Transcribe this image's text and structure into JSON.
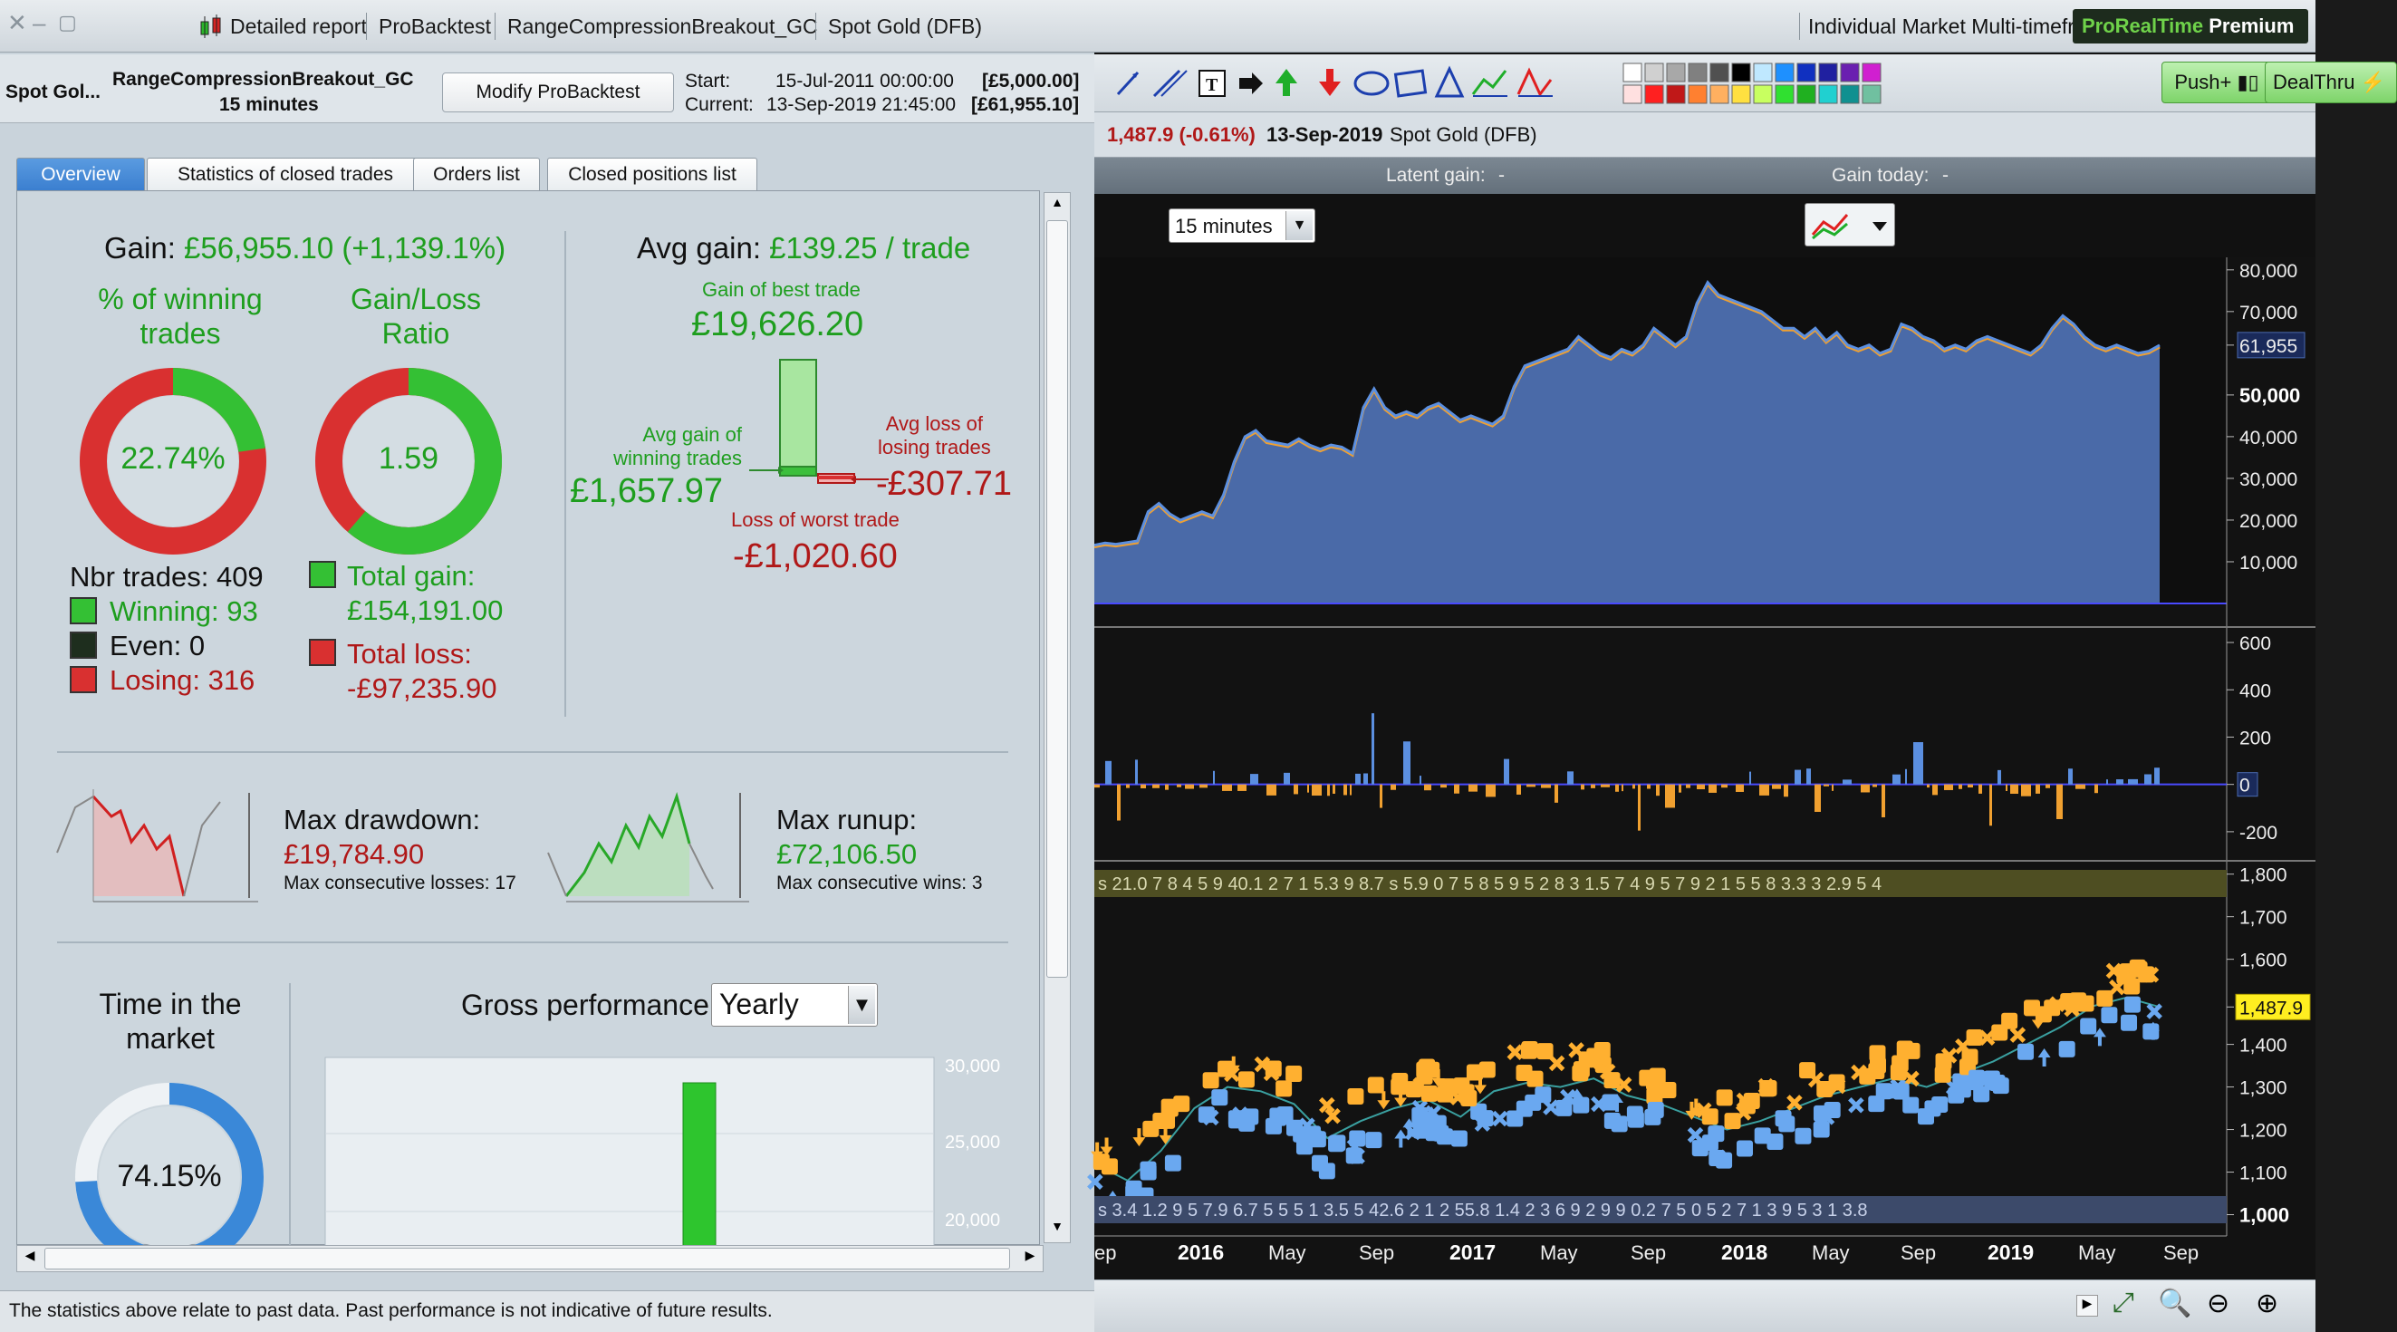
{
  "window": {
    "detailed_report": "Detailed report",
    "probacktest": "ProBacktest",
    "system_name": "RangeCompressionBreakout_GC",
    "instrument": "Spot Gold (DFB)"
  },
  "info": {
    "instrument_short": "Spot Gol...",
    "system_name": "RangeCompressionBreakout_GC",
    "timeframe": "15 minutes",
    "modify_button": "Modify ProBacktest",
    "start_label": "Start:",
    "start_date": "15-Jul-2011 00:00:00",
    "start_value": "[£5,000.00]",
    "current_label": "Current:",
    "current_date": "13-Sep-2019 21:45:00",
    "current_value": "[£61,955.10]"
  },
  "tabs": [
    "Overview",
    "Statistics of closed trades",
    "Orders list",
    "Closed positions list"
  ],
  "overview": {
    "gain_label": "Gain:",
    "gain_value": "£56,955.10 (+1,139.1%)",
    "pct_winning_label_1": "% of winning",
    "pct_winning_label_2": "trades",
    "pct_winning_value": "22.74%",
    "pct_winning_fraction": 0.2274,
    "gain_loss_label_1": "Gain/Loss",
    "gain_loss_label_2": "Ratio",
    "gain_loss_value": "1.59",
    "gain_loss_fraction": 0.613,
    "nbr_trades": "Nbr trades: 409",
    "winning": "Winning: 93",
    "even": "Even: 0",
    "losing": "Losing: 316",
    "total_gain_label": "Total gain:",
    "total_gain_value": "£154,191.00",
    "total_loss_label": "Total loss:",
    "total_loss_value": "-£97,235.90",
    "avg_gain_label": "Avg gain:",
    "avg_gain_value": "£139.25 / trade",
    "best_trade_label": "Gain of best trade",
    "best_trade_value": "£19,626.20",
    "avg_win_label_1": "Avg gain of",
    "avg_win_label_2": "winning trades",
    "avg_win_value": "£1,657.97",
    "avg_loss_label_1": "Avg loss of",
    "avg_loss_label_2": "losing trades",
    "avg_loss_value": "-£307.71",
    "worst_trade_label": "Loss of worst trade",
    "worst_trade_value": "-£1,020.60",
    "max_drawdown_label": "Max drawdown:",
    "max_drawdown_value": "£19,784.90",
    "max_consec_losses": "Max consecutive losses: 17",
    "max_runup_label": "Max runup:",
    "max_runup_value": "£72,106.50",
    "max_consec_wins": "Max consecutive wins: 3",
    "time_market_label_1": "Time in the",
    "time_market_label_2": "market",
    "time_market_value": "74.15%",
    "time_market_fraction": 0.7415,
    "gross_perf_label": "Gross performance",
    "gross_perf_select": "Yearly",
    "gross_y_ticks": [
      "30,000",
      "25,000",
      "20,000"
    ]
  },
  "footer": "The statistics above relate to past data. Past performance is not indicative of future results.",
  "right": {
    "title": "Individual Market Multi-timefr",
    "brand": "ProRealTime",
    "brand_suffix": "Premium",
    "push_button": "Push+",
    "dealthru_button": "DealThru",
    "price_change": "1,487.9 (-0.61%)",
    "date": "13-Sep-2019",
    "instrument": "Spot Gold (DFB)",
    "latent_gain_label": "Latent gain:",
    "latent_gain_value": "-",
    "gain_today_label": "Gain today:",
    "gain_today_value": "-",
    "timeframe_select": "15 minutes",
    "equity_axis": [
      "80,000",
      "70,000",
      "61,955",
      "50,000",
      "40,000",
      "30,000",
      "20,000",
      "10,000"
    ],
    "pnl_axis": [
      "600",
      "400",
      "200",
      "0",
      "-200"
    ],
    "price_axis": [
      "1,800",
      "1,700",
      "1,600",
      "1,487.9",
      "1,400",
      "1,300",
      "1,200",
      "1,100",
      "1,000"
    ],
    "x_axis": [
      "ep",
      "2016",
      "May",
      "Sep",
      "2017",
      "May",
      "Sep",
      "2018",
      "May",
      "Sep",
      "2019",
      "May",
      "Sep"
    ],
    "top_strip": "s 21.0 7 8 4 5 9 40.1 2 7 1 5.3 9 8.7 s 5.9 0 7 5 8 5 9 5 2 8 3 1.5 7 4 9 5 7 9 2 1 5 5 8 3.3 3 2.9 5 4",
    "bottom_strip": "s 3.4 1.2 9 5 7.9 6.7 5 5 5 1 3.5 5 42.6 2 1 2 55.8 1.4 2 3 6 9 2 9 9 0.2 7 5 0 5 2 7 1 3 9 5 3 1 3.8"
  },
  "chart_data": [
    {
      "type": "area",
      "title": "",
      "y_axis_ticks": [
        80000,
        70000,
        50000,
        40000,
        30000,
        20000,
        10000
      ],
      "last_value": 61955,
      "ylim": [
        0,
        83000
      ],
      "values": [
        14000,
        14500,
        14200,
        14600,
        15000,
        22000,
        24000,
        21500,
        20000,
        21000,
        22000,
        21000,
        26000,
        34000,
        40000,
        41500,
        39000,
        38500,
        38000,
        39500,
        38000,
        37000,
        38000,
        37500,
        36000,
        47000,
        51500,
        47000,
        45000,
        46000,
        45000,
        47000,
        48000,
        46000,
        44000,
        45000,
        44000,
        43000,
        45000,
        52000,
        57000,
        58000,
        59000,
        60000,
        61000,
        64000,
        62000,
        60000,
        59000,
        61000,
        60000,
        62000,
        66000,
        64000,
        62000,
        64000,
        72000,
        77000,
        74000,
        73000,
        72000,
        71000,
        70000,
        68000,
        66000,
        66000,
        64000,
        66000,
        63000,
        65000,
        62000,
        61000,
        62000,
        60000,
        61000,
        67000,
        66000,
        64000,
        63000,
        61000,
        62000,
        61000,
        63000,
        64000,
        63000,
        62000,
        61000,
        60000,
        62000,
        66000,
        69000,
        67000,
        64000,
        62000,
        61000,
        62000,
        61000,
        60000,
        60500,
        61955
      ]
    },
    {
      "type": "bar",
      "title": "",
      "y_axis_ticks": [
        600,
        400,
        200,
        0,
        -200
      ],
      "ylim": [
        -300,
        650
      ]
    },
    {
      "type": "scatter",
      "title": "",
      "y_axis_ticks": [
        1800,
        1700,
        1600,
        1400,
        1300,
        1200,
        1100,
        1000
      ],
      "last_value": 1487.9,
      "ylim": [
        950,
        1810
      ],
      "x_ticks": [
        "2016",
        "May",
        "Sep",
        "2017",
        "May",
        "Sep",
        "2018",
        "May",
        "Sep",
        "2019",
        "May",
        "Sep"
      ]
    }
  ],
  "colors": {
    "green": "#1e9e1e",
    "red": "#b01818",
    "equity_fill": "#4a6aa8",
    "equity_line": "#5b8fe0",
    "equity_orange": "#f0a030",
    "pnl_blue": "#5b8fe0",
    "pnl_orange": "#f0a030"
  }
}
